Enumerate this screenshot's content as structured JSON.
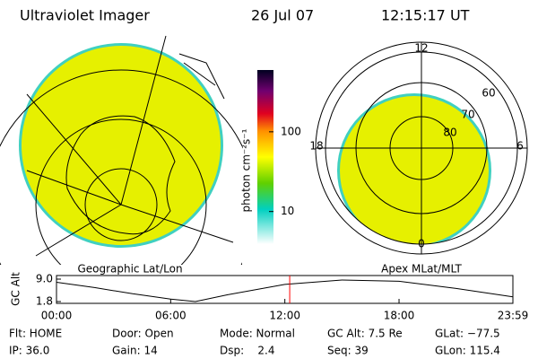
{
  "header": {
    "title": "Ultraviolet Imager",
    "date": "26 Jul 07",
    "time": "12:15:17 UT"
  },
  "left_panel": {
    "label": "Geographic Lat/Lon"
  },
  "right_panel": {
    "label": "Apex MLat/MLT",
    "mlt_labels": [
      "12",
      "18",
      "6",
      "0"
    ],
    "lat_labels": [
      "60",
      "70",
      "80"
    ]
  },
  "colorbar": {
    "label": "photon cm⁻²s⁻¹",
    "lim": [
      3.9,
      596
    ],
    "log": true,
    "ticks": [
      100,
      10
    ]
  },
  "chart_data": {
    "type": "line",
    "y_label": "GC Alt",
    "x": [
      0,
      2,
      4,
      6,
      7.3,
      9,
      12,
      15,
      18,
      21,
      23.983
    ],
    "values": [
      8.0,
      6.3,
      4.3,
      2.6,
      1.8,
      4.0,
      7.3,
      8.7,
      8.3,
      6.0,
      3.3
    ],
    "color": "#000000",
    "marker_x": 12.255,
    "marker_color": "#ff0000",
    "xlim": [
      0,
      23.983
    ],
    "ylim": [
      1.8,
      9.0
    ],
    "xticks": [
      {
        "value": 0,
        "label": "00:00"
      },
      {
        "value": 6,
        "label": "06:00"
      },
      {
        "value": 12,
        "label": "12:00"
      },
      {
        "value": 18,
        "label": "18:00"
      },
      {
        "value": 23.983,
        "label": "23:59"
      }
    ],
    "yticks": [
      {
        "value": 9.0,
        "label": "9.0"
      },
      {
        "value": 1.8,
        "label": "1.8"
      }
    ]
  },
  "status": {
    "rows": [
      [
        "Flt: HOME",
        "Door: Open",
        "Mode: Normal",
        "GC Alt: 7.5 Re",
        "GLat: −77.5"
      ],
      [
        "IP: 36.0",
        "Gain: 14",
        "Dsp:    2.4",
        "Seq: 39",
        "GLon: 115.4"
      ]
    ]
  }
}
